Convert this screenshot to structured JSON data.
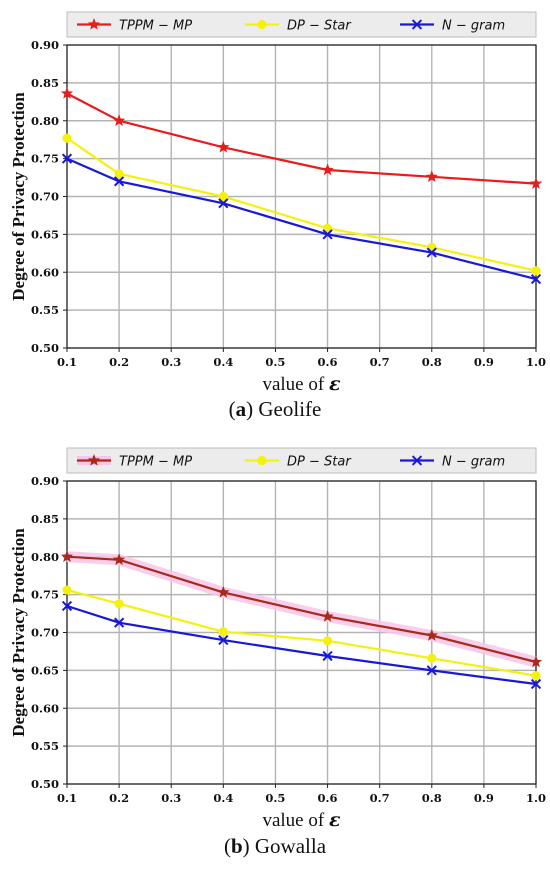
{
  "chart_data": [
    {
      "type": "line",
      "caption_letter": "a",
      "caption_title": "Geolife",
      "xlabel": "value of",
      "xlabel_symbol": "ε",
      "ylabel": "Degree of Privacy Protection",
      "xlim": [
        0.1,
        1.0
      ],
      "ylim": [
        0.5,
        0.9
      ],
      "x_ticks": [
        "0.1",
        "0.2",
        "0.3",
        "0.4",
        "0.5",
        "0.6",
        "0.7",
        "0.8",
        "0.9",
        "1.0"
      ],
      "y_ticks": [
        "0.50",
        "0.55",
        "0.60",
        "0.65",
        "0.70",
        "0.75",
        "0.80",
        "0.85",
        "0.90"
      ],
      "grid": true,
      "legend_position": "top",
      "x": [
        0.1,
        0.2,
        0.4,
        0.6,
        0.8,
        1.0
      ],
      "series": [
        {
          "name": "TPPM − MP",
          "color": "#e81c1c",
          "marker": "star",
          "values": [
            0.836,
            0.8,
            0.765,
            0.735,
            0.726,
            0.717
          ]
        },
        {
          "name": "DP − Star",
          "color": "#f5f10f",
          "marker": "circle",
          "values": [
            0.777,
            0.73,
            0.7,
            0.658,
            0.633,
            0.602
          ]
        },
        {
          "name": "N − gram",
          "color": "#1818d8",
          "marker": "x",
          "values": [
            0.75,
            0.72,
            0.691,
            0.65,
            0.626,
            0.591
          ]
        }
      ]
    },
    {
      "type": "line",
      "caption_letter": "b",
      "caption_title": "Gowalla",
      "xlabel": "value of",
      "xlabel_symbol": "ε",
      "ylabel": "Degree of Privacy Protection",
      "xlim": [
        0.1,
        1.0
      ],
      "ylim": [
        0.5,
        0.9
      ],
      "x_ticks": [
        "0.1",
        "0.2",
        "0.3",
        "0.4",
        "0.5",
        "0.6",
        "0.7",
        "0.8",
        "0.9",
        "1.0"
      ],
      "y_ticks": [
        "0.50",
        "0.55",
        "0.60",
        "0.65",
        "0.70",
        "0.75",
        "0.80",
        "0.85",
        "0.90"
      ],
      "grid": true,
      "legend_position": "top",
      "x": [
        0.1,
        0.2,
        0.4,
        0.6,
        0.8,
        1.0
      ],
      "series": [
        {
          "name": "TPPM − MP",
          "color": "#a8281c",
          "marker": "star",
          "halo": "#f7c6e6",
          "values": [
            0.8,
            0.796,
            0.753,
            0.721,
            0.696,
            0.661
          ]
        },
        {
          "name": "DP − Star",
          "color": "#f5f10f",
          "marker": "circle",
          "values": [
            0.756,
            0.738,
            0.701,
            0.689,
            0.666,
            0.643
          ]
        },
        {
          "name": "N − gram",
          "color": "#1818d8",
          "marker": "x",
          "values": [
            0.735,
            0.713,
            0.69,
            0.669,
            0.65,
            0.632
          ]
        }
      ]
    }
  ]
}
